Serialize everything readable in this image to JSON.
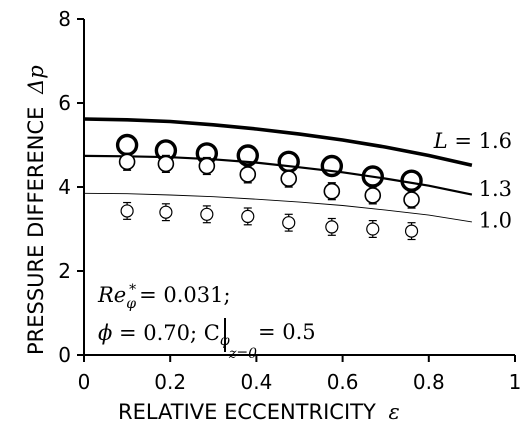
{
  "chart_data": {
    "type": "scatter",
    "xlabel": "RELATIVE ECCENTRICITY",
    "xlabel_symbol": "ε",
    "ylabel": "PRESSURE DIFFERENCE",
    "ylabel_symbol": "Δp",
    "xlim": [
      0,
      1
    ],
    "ylim": [
      0,
      8
    ],
    "x_ticks": [
      0,
      0.2,
      0.4,
      0.6,
      0.8,
      1
    ],
    "x_tick_labels": [
      "0",
      "0.2",
      "0.4",
      "0.6",
      "0.8",
      "1"
    ],
    "y_ticks": [
      0,
      2,
      4,
      6,
      8
    ],
    "y_tick_labels": [
      "0",
      "2",
      "4",
      "6",
      "8"
    ],
    "grid": false,
    "annotations": {
      "line1": "Re*φ = 0.031;",
      "line2": "ϕ = 0.70; Cφ|z=0 = 0.5"
    },
    "series": [
      {
        "name": "L = 1.6",
        "label_prefix": "L",
        "label_value": "= 1.6",
        "color": "#000000",
        "curve_x": [
          0,
          0.1,
          0.2,
          0.3,
          0.4,
          0.5,
          0.6,
          0.7,
          0.8,
          0.9
        ],
        "curve_y": [
          5.62,
          5.6,
          5.56,
          5.48,
          5.38,
          5.26,
          5.12,
          4.95,
          4.75,
          4.52
        ],
        "points_x": [
          0.1,
          0.19,
          0.285,
          0.38,
          0.475,
          0.575,
          0.67,
          0.76
        ],
        "points_y": [
          5.0,
          4.87,
          4.8,
          4.75,
          4.6,
          4.5,
          4.25,
          4.15
        ],
        "errors": [
          0.2,
          0.2,
          0.2,
          0.2,
          0.2,
          0.2,
          0.2,
          0.2
        ]
      },
      {
        "name": "1.3",
        "label_prefix": "",
        "label_value": "1.3",
        "color": "#000000",
        "curve_x": [
          0,
          0.1,
          0.2,
          0.3,
          0.4,
          0.5,
          0.6,
          0.7,
          0.8,
          0.9
        ],
        "curve_y": [
          4.74,
          4.73,
          4.71,
          4.66,
          4.58,
          4.47,
          4.35,
          4.2,
          4.03,
          3.82
        ],
        "points_x": [
          0.1,
          0.19,
          0.285,
          0.38,
          0.475,
          0.575,
          0.67,
          0.76
        ],
        "points_y": [
          4.6,
          4.55,
          4.5,
          4.3,
          4.2,
          3.9,
          3.8,
          3.7
        ],
        "errors": [
          0.2,
          0.2,
          0.2,
          0.2,
          0.2,
          0.2,
          0.2,
          0.2
        ]
      },
      {
        "name": "1.0",
        "label_prefix": "",
        "label_value": "1.0",
        "color": "#000000",
        "curve_x": [
          0,
          0.1,
          0.2,
          0.3,
          0.4,
          0.5,
          0.6,
          0.7,
          0.8,
          0.9
        ],
        "curve_y": [
          3.85,
          3.84,
          3.81,
          3.77,
          3.71,
          3.64,
          3.56,
          3.45,
          3.33,
          3.17
        ],
        "points_x": [
          0.1,
          0.19,
          0.285,
          0.38,
          0.475,
          0.575,
          0.67,
          0.76
        ],
        "points_y": [
          3.43,
          3.4,
          3.35,
          3.3,
          3.15,
          3.05,
          3.0,
          2.95
        ],
        "errors": [
          0.2,
          0.2,
          0.2,
          0.2,
          0.2,
          0.2,
          0.2,
          0.2
        ]
      }
    ]
  }
}
